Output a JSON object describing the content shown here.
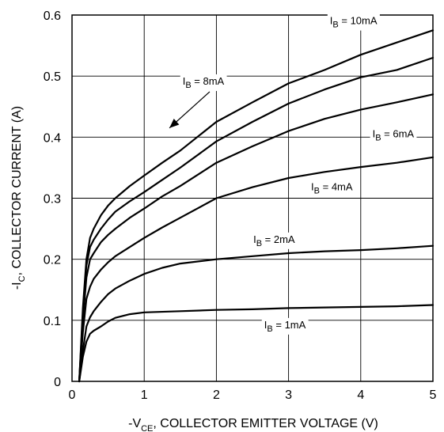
{
  "chart_data": {
    "type": "line",
    "xlabel": {
      "prefix": "-V",
      "sub": "CE",
      "suffix": ", COLLECTOR EMITTER VOLTAGE (V)"
    },
    "ylabel": {
      "prefix": "-I",
      "sub": "C",
      "suffix": ", COLLECTOR CURRENT (A)"
    },
    "xlim": [
      0,
      5
    ],
    "ylim": [
      0,
      0.6
    ],
    "xticks": [
      "0",
      "1",
      "2",
      "3",
      "4",
      "5"
    ],
    "yticks": [
      "0",
      "0.1",
      "0.2",
      "0.3",
      "0.4",
      "0.5",
      "0.6"
    ],
    "grid": true,
    "series": [
      {
        "name": "I_B = 10mA",
        "label": {
          "prefix": "I",
          "sub": "B",
          "suffix": " = 10mA"
        },
        "x": [
          0.1,
          0.15,
          0.2,
          0.25,
          0.3,
          0.4,
          0.5,
          0.6,
          0.8,
          1.0,
          1.25,
          1.5,
          2.0,
          2.5,
          3.0,
          3.5,
          4.0,
          4.5,
          5.0
        ],
        "y": [
          0.0,
          0.12,
          0.2,
          0.235,
          0.25,
          0.272,
          0.288,
          0.3,
          0.32,
          0.337,
          0.358,
          0.378,
          0.425,
          0.457,
          0.488,
          0.51,
          0.535,
          0.555,
          0.575
        ]
      },
      {
        "name": "I_B = 8mA",
        "label": {
          "prefix": "I",
          "sub": "B",
          "suffix": " = 8mA"
        },
        "x": [
          0.1,
          0.15,
          0.2,
          0.25,
          0.3,
          0.4,
          0.5,
          0.6,
          0.8,
          1.0,
          1.25,
          1.5,
          2.0,
          2.5,
          3.0,
          3.5,
          4.0,
          4.5,
          5.0
        ],
        "y": [
          0.0,
          0.11,
          0.19,
          0.22,
          0.232,
          0.25,
          0.265,
          0.278,
          0.295,
          0.31,
          0.33,
          0.35,
          0.393,
          0.425,
          0.455,
          0.478,
          0.498,
          0.51,
          0.53
        ]
      },
      {
        "name": "I_B = 6mA",
        "label": {
          "prefix": "I",
          "sub": "B",
          "suffix": " = 6mA"
        },
        "x": [
          0.1,
          0.15,
          0.2,
          0.25,
          0.3,
          0.4,
          0.5,
          0.6,
          0.8,
          1.0,
          1.25,
          1.5,
          2.0,
          2.5,
          3.0,
          3.5,
          4.0,
          4.5,
          5.0
        ],
        "y": [
          0.0,
          0.1,
          0.17,
          0.2,
          0.21,
          0.228,
          0.24,
          0.25,
          0.268,
          0.283,
          0.303,
          0.32,
          0.358,
          0.385,
          0.41,
          0.43,
          0.445,
          0.457,
          0.47
        ]
      },
      {
        "name": "I_B = 4mA",
        "label": {
          "prefix": "I",
          "sub": "B",
          "suffix": " = 4mA"
        },
        "x": [
          0.1,
          0.15,
          0.2,
          0.25,
          0.3,
          0.4,
          0.5,
          0.6,
          0.8,
          1.0,
          1.25,
          1.5,
          2.0,
          2.5,
          3.0,
          3.5,
          4.0,
          4.5,
          5.0
        ],
        "y": [
          0.0,
          0.08,
          0.135,
          0.155,
          0.168,
          0.183,
          0.195,
          0.205,
          0.22,
          0.235,
          0.252,
          0.268,
          0.3,
          0.318,
          0.333,
          0.343,
          0.351,
          0.358,
          0.367
        ]
      },
      {
        "name": "I_B = 2mA",
        "label": {
          "prefix": "I",
          "sub": "B",
          "suffix": " = 2mA"
        },
        "x": [
          0.1,
          0.15,
          0.2,
          0.25,
          0.3,
          0.4,
          0.5,
          0.6,
          0.8,
          1.0,
          1.25,
          1.5,
          2.0,
          2.5,
          3.0,
          3.5,
          4.0,
          4.5,
          5.0
        ],
        "y": [
          0.0,
          0.05,
          0.09,
          0.105,
          0.115,
          0.13,
          0.143,
          0.152,
          0.165,
          0.176,
          0.186,
          0.193,
          0.2,
          0.205,
          0.21,
          0.213,
          0.215,
          0.218,
          0.222
        ]
      },
      {
        "name": "I_B = 1mA",
        "label": {
          "prefix": "I",
          "sub": "B",
          "suffix": " = 1mA"
        },
        "x": [
          0.1,
          0.15,
          0.2,
          0.25,
          0.3,
          0.4,
          0.5,
          0.6,
          0.8,
          1.0,
          1.5,
          2.0,
          2.5,
          3.0,
          3.5,
          4.0,
          4.5,
          5.0
        ],
        "y": [
          0.0,
          0.04,
          0.065,
          0.078,
          0.083,
          0.09,
          0.098,
          0.104,
          0.11,
          0.113,
          0.115,
          0.117,
          0.118,
          0.12,
          0.121,
          0.122,
          0.123,
          0.125
        ]
      }
    ],
    "annotations": [
      {
        "series": 0,
        "at": [
          3.9,
          0.585
        ]
      },
      {
        "series": 1,
        "at": [
          1.82,
          0.486
        ],
        "arrow_to": [
          1.35,
          0.415
        ]
      },
      {
        "series": 2,
        "at": [
          4.45,
          0.4
        ]
      },
      {
        "series": 3,
        "at": [
          3.6,
          0.313
        ]
      },
      {
        "series": 4,
        "at": [
          2.8,
          0.227
        ]
      },
      {
        "series": 5,
        "at": [
          2.95,
          0.087
        ]
      }
    ]
  }
}
